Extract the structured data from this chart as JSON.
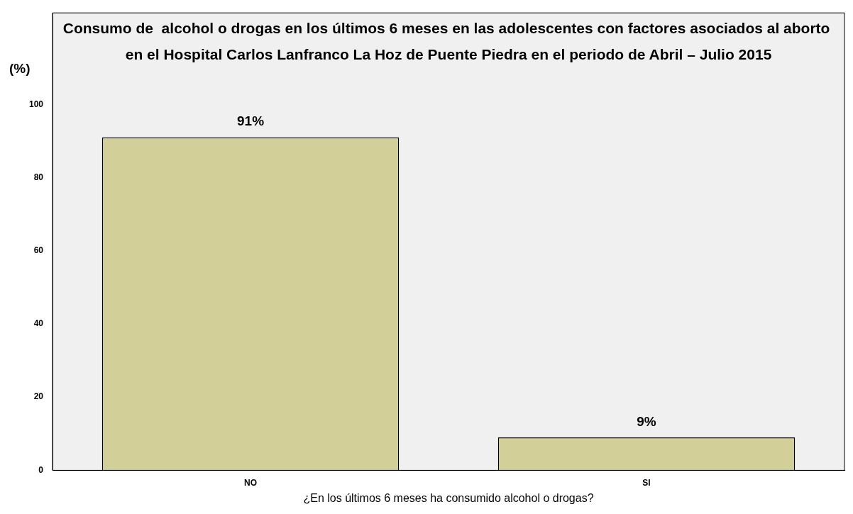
{
  "chart_data": {
    "type": "bar",
    "title": "Consumo de  alcohol o drogas en los últimos 6 meses en las adolescentes con factores asociados al aborto  en el Hospital Carlos Lanfranco La Hoz de Puente Piedra en el periodo de Abril – Julio 2015",
    "ylabel": "(%)",
    "xlabel": "¿En los últimos 6 meses ha consumido alcohol o drogas?",
    "categories": [
      "NO",
      "SI"
    ],
    "values": [
      91,
      9
    ],
    "value_labels": [
      "91%",
      "9%"
    ],
    "color": "#d3cf98",
    "ylim": [
      0,
      125
    ],
    "yticks": [
      0,
      20,
      40,
      60,
      80,
      100
    ],
    "grid": false,
    "legend": false
  }
}
